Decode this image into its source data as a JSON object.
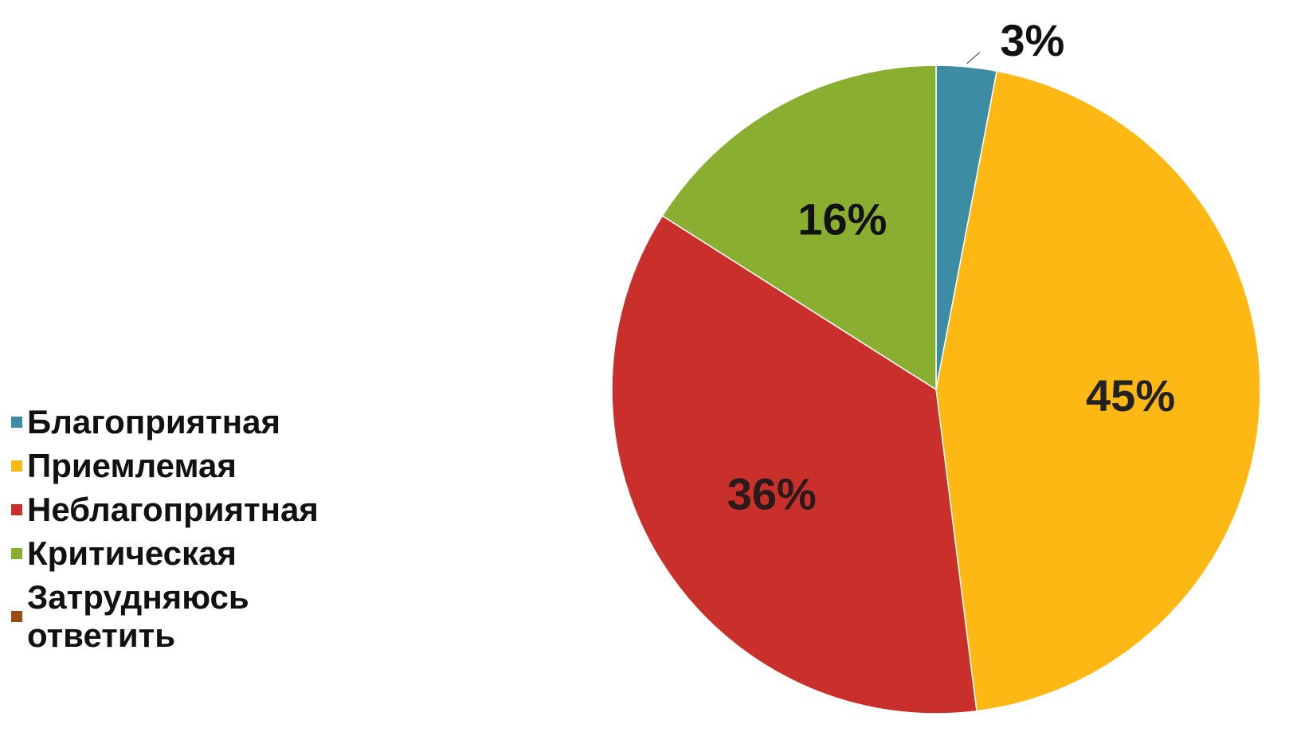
{
  "chart_data": {
    "type": "pie",
    "categories": [
      "Благоприятная",
      "Приемлемая",
      "Неблагоприятная",
      "Критическая",
      "Затрудняюсь ответить"
    ],
    "values": [
      3,
      45,
      36,
      16,
      0
    ],
    "labels": [
      "3%",
      "45%",
      "36%",
      "16%",
      ""
    ],
    "colors": [
      "#3C8DA3",
      "#FDB813",
      "#C9302C",
      "#8AAE30",
      "#9C4A11"
    ],
    "legend_placement": "left",
    "start_angle": "top",
    "direction": "clockwise"
  }
}
